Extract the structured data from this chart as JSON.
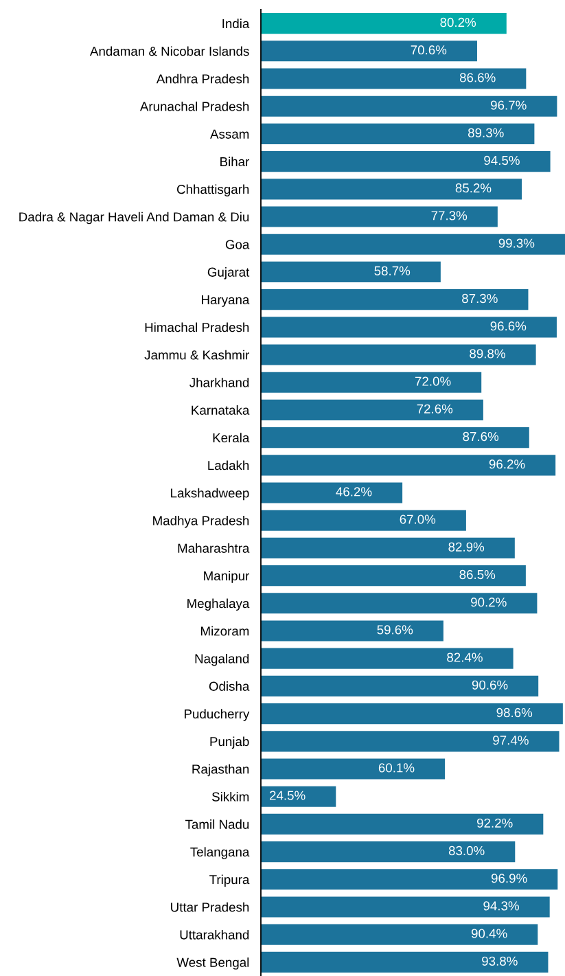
{
  "chart_data": {
    "type": "bar",
    "orientation": "horizontal",
    "data_labels": true,
    "grid": false,
    "legend": false,
    "tick_labels": "y",
    "categories": [
      "India",
      "Andaman & Nicobar Islands",
      "Andhra Pradesh",
      "Arunachal Pradesh",
      "Assam",
      "Bihar",
      "Chhattisgarh",
      "Dadra & Nagar Haveli And Daman & Diu",
      "Goa",
      "Gujarat",
      "Haryana",
      "Himachal Pradesh",
      "Jammu & Kashmir",
      "Jharkhand",
      "Karnataka",
      "Kerala",
      "Ladakh",
      "Lakshadweep",
      "Madhya Pradesh",
      "Maharashtra",
      "Manipur",
      "Meghalaya",
      "Mizoram",
      "Nagaland",
      "Odisha",
      "Puducherry",
      "Punjab",
      "Rajasthan",
      "Sikkim",
      "Tamil Nadu",
      "Telangana",
      "Tripura",
      "Uttar Pradesh",
      "Uttarakhand",
      "West Bengal"
    ],
    "values": [
      80.2,
      70.6,
      86.6,
      96.7,
      89.3,
      94.5,
      85.2,
      77.3,
      99.3,
      58.7,
      87.3,
      96.6,
      89.8,
      72.0,
      72.6,
      87.6,
      96.2,
      46.2,
      67.0,
      82.9,
      86.5,
      90.2,
      59.6,
      82.4,
      90.6,
      98.6,
      97.4,
      60.1,
      24.5,
      92.2,
      83.0,
      96.9,
      94.3,
      90.4,
      93.8
    ],
    "value_labels": [
      "80.2%",
      "70.6%",
      "86.6%",
      "96.7%",
      "89.3%",
      "94.5%",
      "85.2%",
      "77.3%",
      "99.3%",
      "58.7%",
      "87.3%",
      "96.6%",
      "89.8%",
      "72.0%",
      "72.6%",
      "87.6%",
      "96.2%",
      "46.2%",
      "67.0%",
      "82.9%",
      "86.5%",
      "90.2%",
      "59.6%",
      "82.4%",
      "90.6%",
      "98.6%",
      "97.4%",
      "60.1%",
      "24.5%",
      "92.2%",
      "83.0%",
      "96.9%",
      "94.3%",
      "90.4%",
      "93.8%"
    ],
    "colors": [
      "#00aaa8",
      "#1c739b",
      "#1c739b",
      "#1c739b",
      "#1c739b",
      "#1c739b",
      "#1c739b",
      "#1c739b",
      "#1c739b",
      "#1c739b",
      "#1c739b",
      "#1c739b",
      "#1c739b",
      "#1c739b",
      "#1c739b",
      "#1c739b",
      "#1c739b",
      "#1c739b",
      "#1c739b",
      "#1c739b",
      "#1c739b",
      "#1c739b",
      "#1c739b",
      "#1c739b",
      "#1c739b",
      "#1c739b",
      "#1c739b",
      "#1c739b",
      "#1c739b",
      "#1c739b",
      "#1c739b",
      "#1c739b",
      "#1c739b",
      "#1c739b",
      "#1c739b"
    ]
  }
}
